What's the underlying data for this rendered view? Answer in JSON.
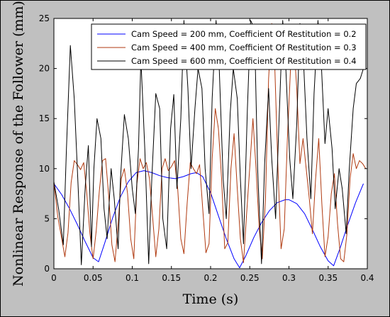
{
  "chart_data": {
    "type": "line",
    "title": "",
    "xlabel": "Time (s)",
    "ylabel": "Nonlinear Response of the Follower (mm)",
    "xlim": [
      0,
      0.4
    ],
    "ylim": [
      0,
      25
    ],
    "xticks": [
      "0",
      "0.05",
      "0.1",
      "0.15",
      "0.2",
      "0.25",
      "0.3",
      "0.35",
      "0.4"
    ],
    "yticks": [
      "0",
      "5",
      "10",
      "15",
      "20",
      "25"
    ],
    "grid": false,
    "legend_position": "top-right",
    "series": [
      {
        "name": "Cam Speed = 200 mm, Coefficient Of Restitution = 0.2",
        "color": "#0000ff",
        "x": [
          0.0,
          0.01,
          0.02,
          0.03,
          0.04,
          0.05,
          0.057,
          0.065,
          0.075,
          0.085,
          0.095,
          0.105,
          0.115,
          0.125,
          0.135,
          0.145,
          0.155,
          0.165,
          0.175,
          0.182,
          0.19,
          0.2,
          0.21,
          0.22,
          0.23,
          0.237,
          0.245,
          0.255,
          0.265,
          0.275,
          0.285,
          0.295,
          0.3,
          0.31,
          0.32,
          0.33,
          0.34,
          0.35,
          0.357,
          0.365,
          0.375,
          0.385,
          0.395
        ],
        "y": [
          8.5,
          7.4,
          6.0,
          4.4,
          2.7,
          1.1,
          0.7,
          2.6,
          5.1,
          7.2,
          8.7,
          9.6,
          9.8,
          9.6,
          9.3,
          9.1,
          9.0,
          9.2,
          9.5,
          9.6,
          9.2,
          7.6,
          5.3,
          3.0,
          1.0,
          0.1,
          1.3,
          3.1,
          4.6,
          5.8,
          6.6,
          6.9,
          6.9,
          6.5,
          5.5,
          3.9,
          2.2,
          0.8,
          0.3,
          2.0,
          4.4,
          6.6,
          8.5
        ]
      },
      {
        "name": "Cam Speed = 400 mm, Coefficient Of Restitution = 0.3",
        "color": "#b03a10",
        "x": [
          0.0,
          0.005,
          0.01,
          0.014,
          0.018,
          0.022,
          0.026,
          0.03,
          0.034,
          0.038,
          0.042,
          0.046,
          0.05,
          0.054,
          0.058,
          0.062,
          0.066,
          0.07,
          0.074,
          0.078,
          0.082,
          0.086,
          0.09,
          0.094,
          0.098,
          0.102,
          0.106,
          0.11,
          0.114,
          0.118,
          0.122,
          0.126,
          0.13,
          0.134,
          0.138,
          0.142,
          0.146,
          0.15,
          0.154,
          0.158,
          0.162,
          0.166,
          0.17,
          0.174,
          0.178,
          0.182,
          0.186,
          0.19,
          0.194,
          0.198,
          0.202,
          0.206,
          0.21,
          0.214,
          0.218,
          0.222,
          0.226,
          0.23,
          0.234,
          0.238,
          0.242,
          0.246,
          0.25,
          0.254,
          0.258,
          0.262,
          0.266,
          0.27,
          0.274,
          0.278,
          0.282,
          0.286,
          0.29,
          0.294,
          0.298,
          0.302,
          0.306,
          0.31,
          0.314,
          0.318,
          0.322,
          0.326,
          0.33,
          0.334,
          0.338,
          0.342,
          0.346,
          0.35,
          0.354,
          0.358,
          0.362,
          0.366,
          0.37,
          0.374,
          0.378,
          0.382,
          0.386,
          0.39,
          0.394,
          0.398
        ],
        "y": [
          8.6,
          5.2,
          3.0,
          1.2,
          3.6,
          8.6,
          10.8,
          10.4,
          9.9,
          10.6,
          7.5,
          3.5,
          1.0,
          3.8,
          7.8,
          10.8,
          11.0,
          7.2,
          2.4,
          0.7,
          4.5,
          9.0,
          10.0,
          7.5,
          3.0,
          1.0,
          8.5,
          11.0,
          10.0,
          10.6,
          9.0,
          5.2,
          1.2,
          4.0,
          10.0,
          11.0,
          9.8,
          10.2,
          10.8,
          8.0,
          3.0,
          1.5,
          6.5,
          10.6,
          10.0,
          9.5,
          10.4,
          6.0,
          1.6,
          2.5,
          11.0,
          16.0,
          14.0,
          9.0,
          2.0,
          2.6,
          10.0,
          13.5,
          8.0,
          3.0,
          0.6,
          5.5,
          10.2,
          15.0,
          10.0,
          4.0,
          1.0,
          7.0,
          19.0,
          24.5,
          20.0,
          10.0,
          2.0,
          4.0,
          13.0,
          20.0,
          23.0,
          18.0,
          10.5,
          13.0,
          10.0,
          7.0,
          3.5,
          9.0,
          13.0,
          6.5,
          1.2,
          3.2,
          7.5,
          9.5,
          4.5,
          1.0,
          0.7,
          3.5,
          9.0,
          11.5,
          10.0,
          10.8,
          10.5,
          10.0
        ]
      },
      {
        "name": "Cam Speed = 600 mm, Coefficient Of Restitution = 0.4",
        "color": "#000000",
        "x": [
          0.0,
          0.006,
          0.012,
          0.016,
          0.021,
          0.026,
          0.031,
          0.035,
          0.04,
          0.044,
          0.048,
          0.051,
          0.055,
          0.06,
          0.064,
          0.068,
          0.073,
          0.077,
          0.082,
          0.085,
          0.09,
          0.095,
          0.1,
          0.104,
          0.108,
          0.111,
          0.116,
          0.121,
          0.125,
          0.13,
          0.135,
          0.139,
          0.144,
          0.149,
          0.153,
          0.157,
          0.162,
          0.166,
          0.171,
          0.175,
          0.18,
          0.184,
          0.189,
          0.193,
          0.198,
          0.202,
          0.207,
          0.211,
          0.216,
          0.22,
          0.225,
          0.229,
          0.234,
          0.238,
          0.242,
          0.247,
          0.251,
          0.256,
          0.26,
          0.265,
          0.269,
          0.274,
          0.278,
          0.283,
          0.287,
          0.292,
          0.296,
          0.301,
          0.305,
          0.31,
          0.314,
          0.319,
          0.323,
          0.328,
          0.332,
          0.337,
          0.341,
          0.346,
          0.35,
          0.355,
          0.359,
          0.364,
          0.368,
          0.373,
          0.377,
          0.382,
          0.386,
          0.391,
          0.395
        ],
        "y": [
          8.7,
          6.0,
          2.4,
          12.0,
          22.3,
          17.0,
          8.0,
          0.4,
          8.2,
          12.3,
          2.2,
          10.0,
          15.0,
          13.0,
          6.0,
          3.0,
          10.0,
          7.0,
          2.0,
          9.0,
          15.4,
          13.0,
          8.0,
          5.5,
          12.0,
          21.0,
          12.0,
          0.5,
          9.0,
          17.5,
          16.0,
          5.0,
          2.0,
          14.0,
          17.4,
          8.0,
          15.0,
          24.8,
          18.0,
          10.0,
          16.0,
          20.0,
          18.0,
          10.0,
          5.5,
          17.0,
          24.8,
          20.0,
          9.0,
          5.0,
          15.5,
          20.0,
          17.0,
          9.0,
          2.5,
          16.0,
          24.8,
          24.0,
          10.0,
          0.5,
          10.5,
          18.0,
          11.0,
          5.0,
          14.0,
          24.8,
          20.0,
          11.0,
          7.0,
          14.5,
          24.5,
          20.0,
          13.0,
          7.0,
          17.5,
          24.8,
          21.0,
          12.5,
          16.0,
          12.0,
          6.0,
          10.0,
          8.0,
          3.5,
          10.0,
          16.0,
          18.5,
          19.0,
          20.0
        ]
      }
    ]
  }
}
